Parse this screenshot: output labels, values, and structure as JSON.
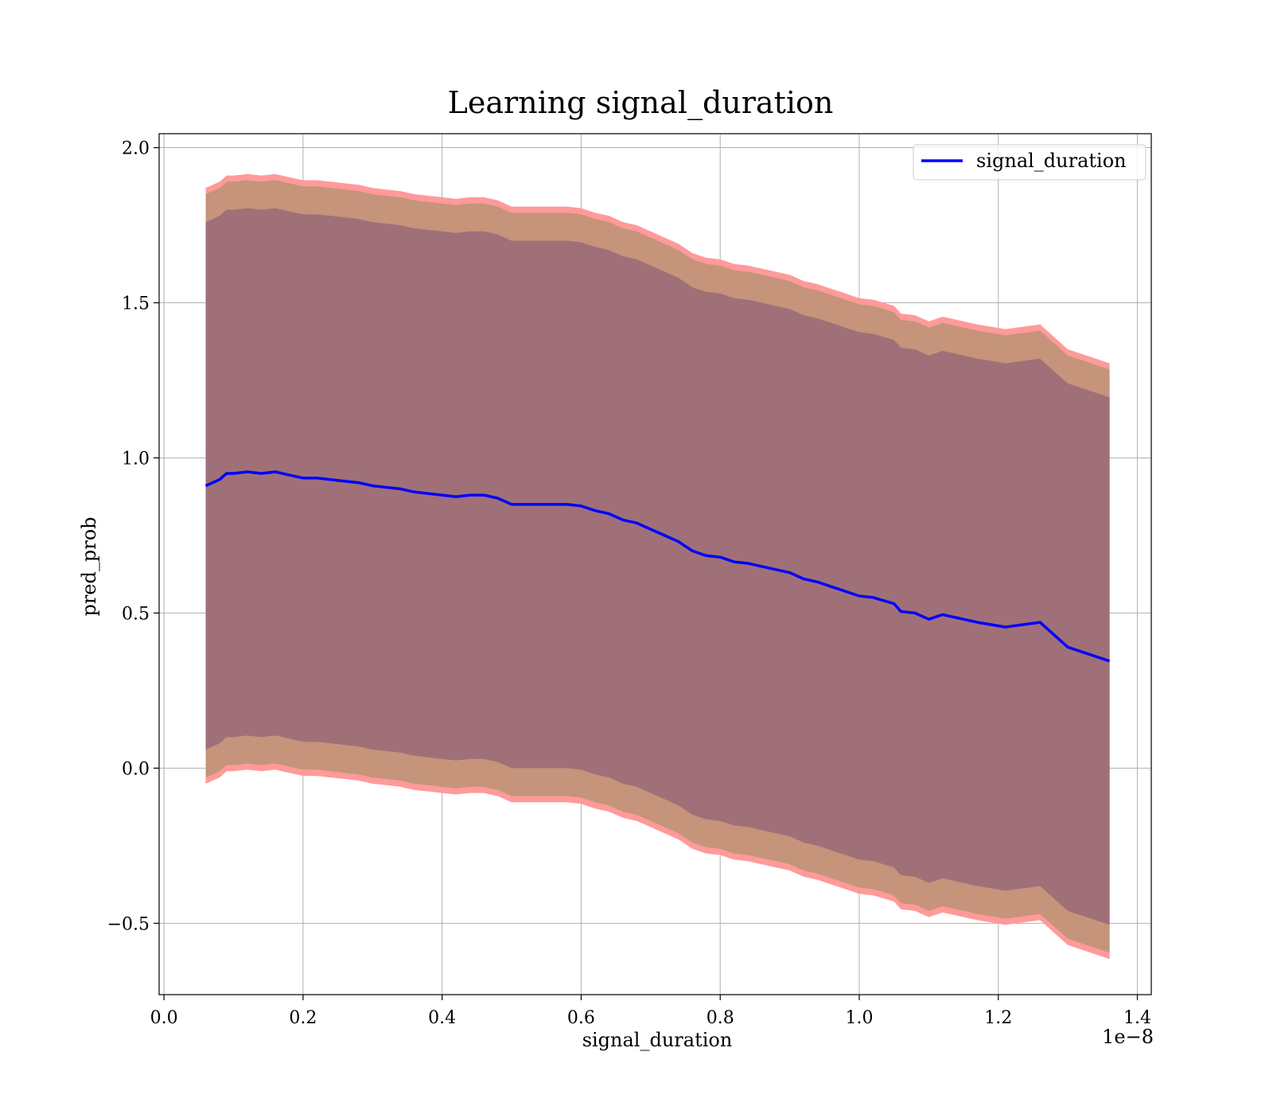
{
  "chart_data": {
    "type": "line",
    "title": "Learning signal_duration",
    "xlabel": "signal_duration",
    "ylabel": "pred_prob",
    "x_offset_label": "1e−8",
    "xlim": [
      -0.007,
      1.42
    ],
    "ylim": [
      -0.73,
      2.045
    ],
    "xticks": [
      0.0,
      0.2,
      0.4,
      0.6,
      0.8,
      1.0,
      1.2,
      1.4
    ],
    "xtick_labels": [
      "0.0",
      "0.2",
      "0.4",
      "0.6",
      "0.8",
      "1.0",
      "1.2",
      "1.4"
    ],
    "yticks": [
      -0.5,
      0.0,
      0.5,
      1.0,
      1.5,
      2.0
    ],
    "ytick_labels": [
      "−0.5",
      "0.0",
      "0.5",
      "1.0",
      "1.5",
      "2.0"
    ],
    "grid": true,
    "legend": {
      "entries": [
        "signal_duration"
      ],
      "placement": "top-right"
    },
    "colors": {
      "line": "#0000ff",
      "outer_band": "#ff9a9a",
      "middle_band": "#c5947a",
      "inner_band": "#a07079",
      "grid": "#b0b0b0"
    },
    "x": [
      0.06,
      0.07,
      0.08,
      0.09,
      0.1,
      0.12,
      0.14,
      0.16,
      0.18,
      0.2,
      0.22,
      0.24,
      0.26,
      0.28,
      0.3,
      0.32,
      0.34,
      0.36,
      0.38,
      0.4,
      0.42,
      0.44,
      0.46,
      0.48,
      0.5,
      0.52,
      0.54,
      0.56,
      0.58,
      0.6,
      0.62,
      0.64,
      0.66,
      0.68,
      0.7,
      0.72,
      0.74,
      0.76,
      0.78,
      0.8,
      0.82,
      0.84,
      0.86,
      0.88,
      0.9,
      0.92,
      0.94,
      0.96,
      0.98,
      1.0,
      1.02,
      1.05,
      1.06,
      1.08,
      1.1,
      1.12,
      1.14,
      1.17,
      1.21,
      1.26,
      1.3,
      1.36
    ],
    "series": [
      {
        "name": "signal_duration",
        "values": [
          0.91,
          0.92,
          0.93,
          0.95,
          0.95,
          0.955,
          0.95,
          0.955,
          0.945,
          0.935,
          0.935,
          0.93,
          0.925,
          0.92,
          0.91,
          0.905,
          0.9,
          0.89,
          0.885,
          0.88,
          0.875,
          0.88,
          0.88,
          0.87,
          0.85,
          0.85,
          0.85,
          0.85,
          0.85,
          0.845,
          0.83,
          0.82,
          0.8,
          0.79,
          0.77,
          0.75,
          0.73,
          0.7,
          0.685,
          0.68,
          0.665,
          0.66,
          0.65,
          0.64,
          0.63,
          0.61,
          0.6,
          0.585,
          0.57,
          0.555,
          0.55,
          0.53,
          0.505,
          0.5,
          0.48,
          0.495,
          0.485,
          0.47,
          0.455,
          0.47,
          0.39,
          0.345
        ],
        "inner_halfwidth": [
          0.85,
          0.85,
          0.85,
          0.85,
          0.85,
          0.85,
          0.85,
          0.85,
          0.85,
          0.85,
          0.85,
          0.85,
          0.85,
          0.85,
          0.85,
          0.85,
          0.85,
          0.85,
          0.85,
          0.85,
          0.85,
          0.85,
          0.85,
          0.85,
          0.85,
          0.85,
          0.85,
          0.85,
          0.85,
          0.85,
          0.85,
          0.85,
          0.85,
          0.85,
          0.85,
          0.85,
          0.85,
          0.85,
          0.85,
          0.85,
          0.85,
          0.85,
          0.85,
          0.85,
          0.85,
          0.85,
          0.85,
          0.85,
          0.85,
          0.85,
          0.85,
          0.85,
          0.85,
          0.85,
          0.85,
          0.85,
          0.85,
          0.85,
          0.85,
          0.85,
          0.85,
          0.85
        ],
        "middle_halfwidth": [
          0.94,
          0.94,
          0.94,
          0.94,
          0.94,
          0.94,
          0.94,
          0.94,
          0.94,
          0.94,
          0.94,
          0.94,
          0.94,
          0.94,
          0.94,
          0.94,
          0.94,
          0.94,
          0.94,
          0.94,
          0.94,
          0.94,
          0.94,
          0.94,
          0.94,
          0.94,
          0.94,
          0.94,
          0.94,
          0.94,
          0.94,
          0.94,
          0.94,
          0.94,
          0.94,
          0.94,
          0.94,
          0.94,
          0.94,
          0.94,
          0.94,
          0.94,
          0.94,
          0.94,
          0.94,
          0.94,
          0.94,
          0.94,
          0.94,
          0.94,
          0.94,
          0.94,
          0.94,
          0.94,
          0.94,
          0.94,
          0.94,
          0.94,
          0.94,
          0.94,
          0.94,
          0.94
        ],
        "outer_halfwidth": [
          0.96,
          0.96,
          0.96,
          0.96,
          0.96,
          0.96,
          0.96,
          0.96,
          0.96,
          0.96,
          0.96,
          0.96,
          0.96,
          0.96,
          0.96,
          0.96,
          0.96,
          0.96,
          0.96,
          0.96,
          0.96,
          0.96,
          0.96,
          0.96,
          0.96,
          0.96,
          0.96,
          0.96,
          0.96,
          0.96,
          0.96,
          0.96,
          0.96,
          0.96,
          0.96,
          0.96,
          0.96,
          0.96,
          0.96,
          0.96,
          0.96,
          0.96,
          0.96,
          0.96,
          0.96,
          0.96,
          0.96,
          0.96,
          0.96,
          0.96,
          0.96,
          0.96,
          0.96,
          0.96,
          0.96,
          0.96,
          0.96,
          0.96,
          0.96,
          0.96,
          0.96,
          0.96
        ]
      }
    ]
  }
}
